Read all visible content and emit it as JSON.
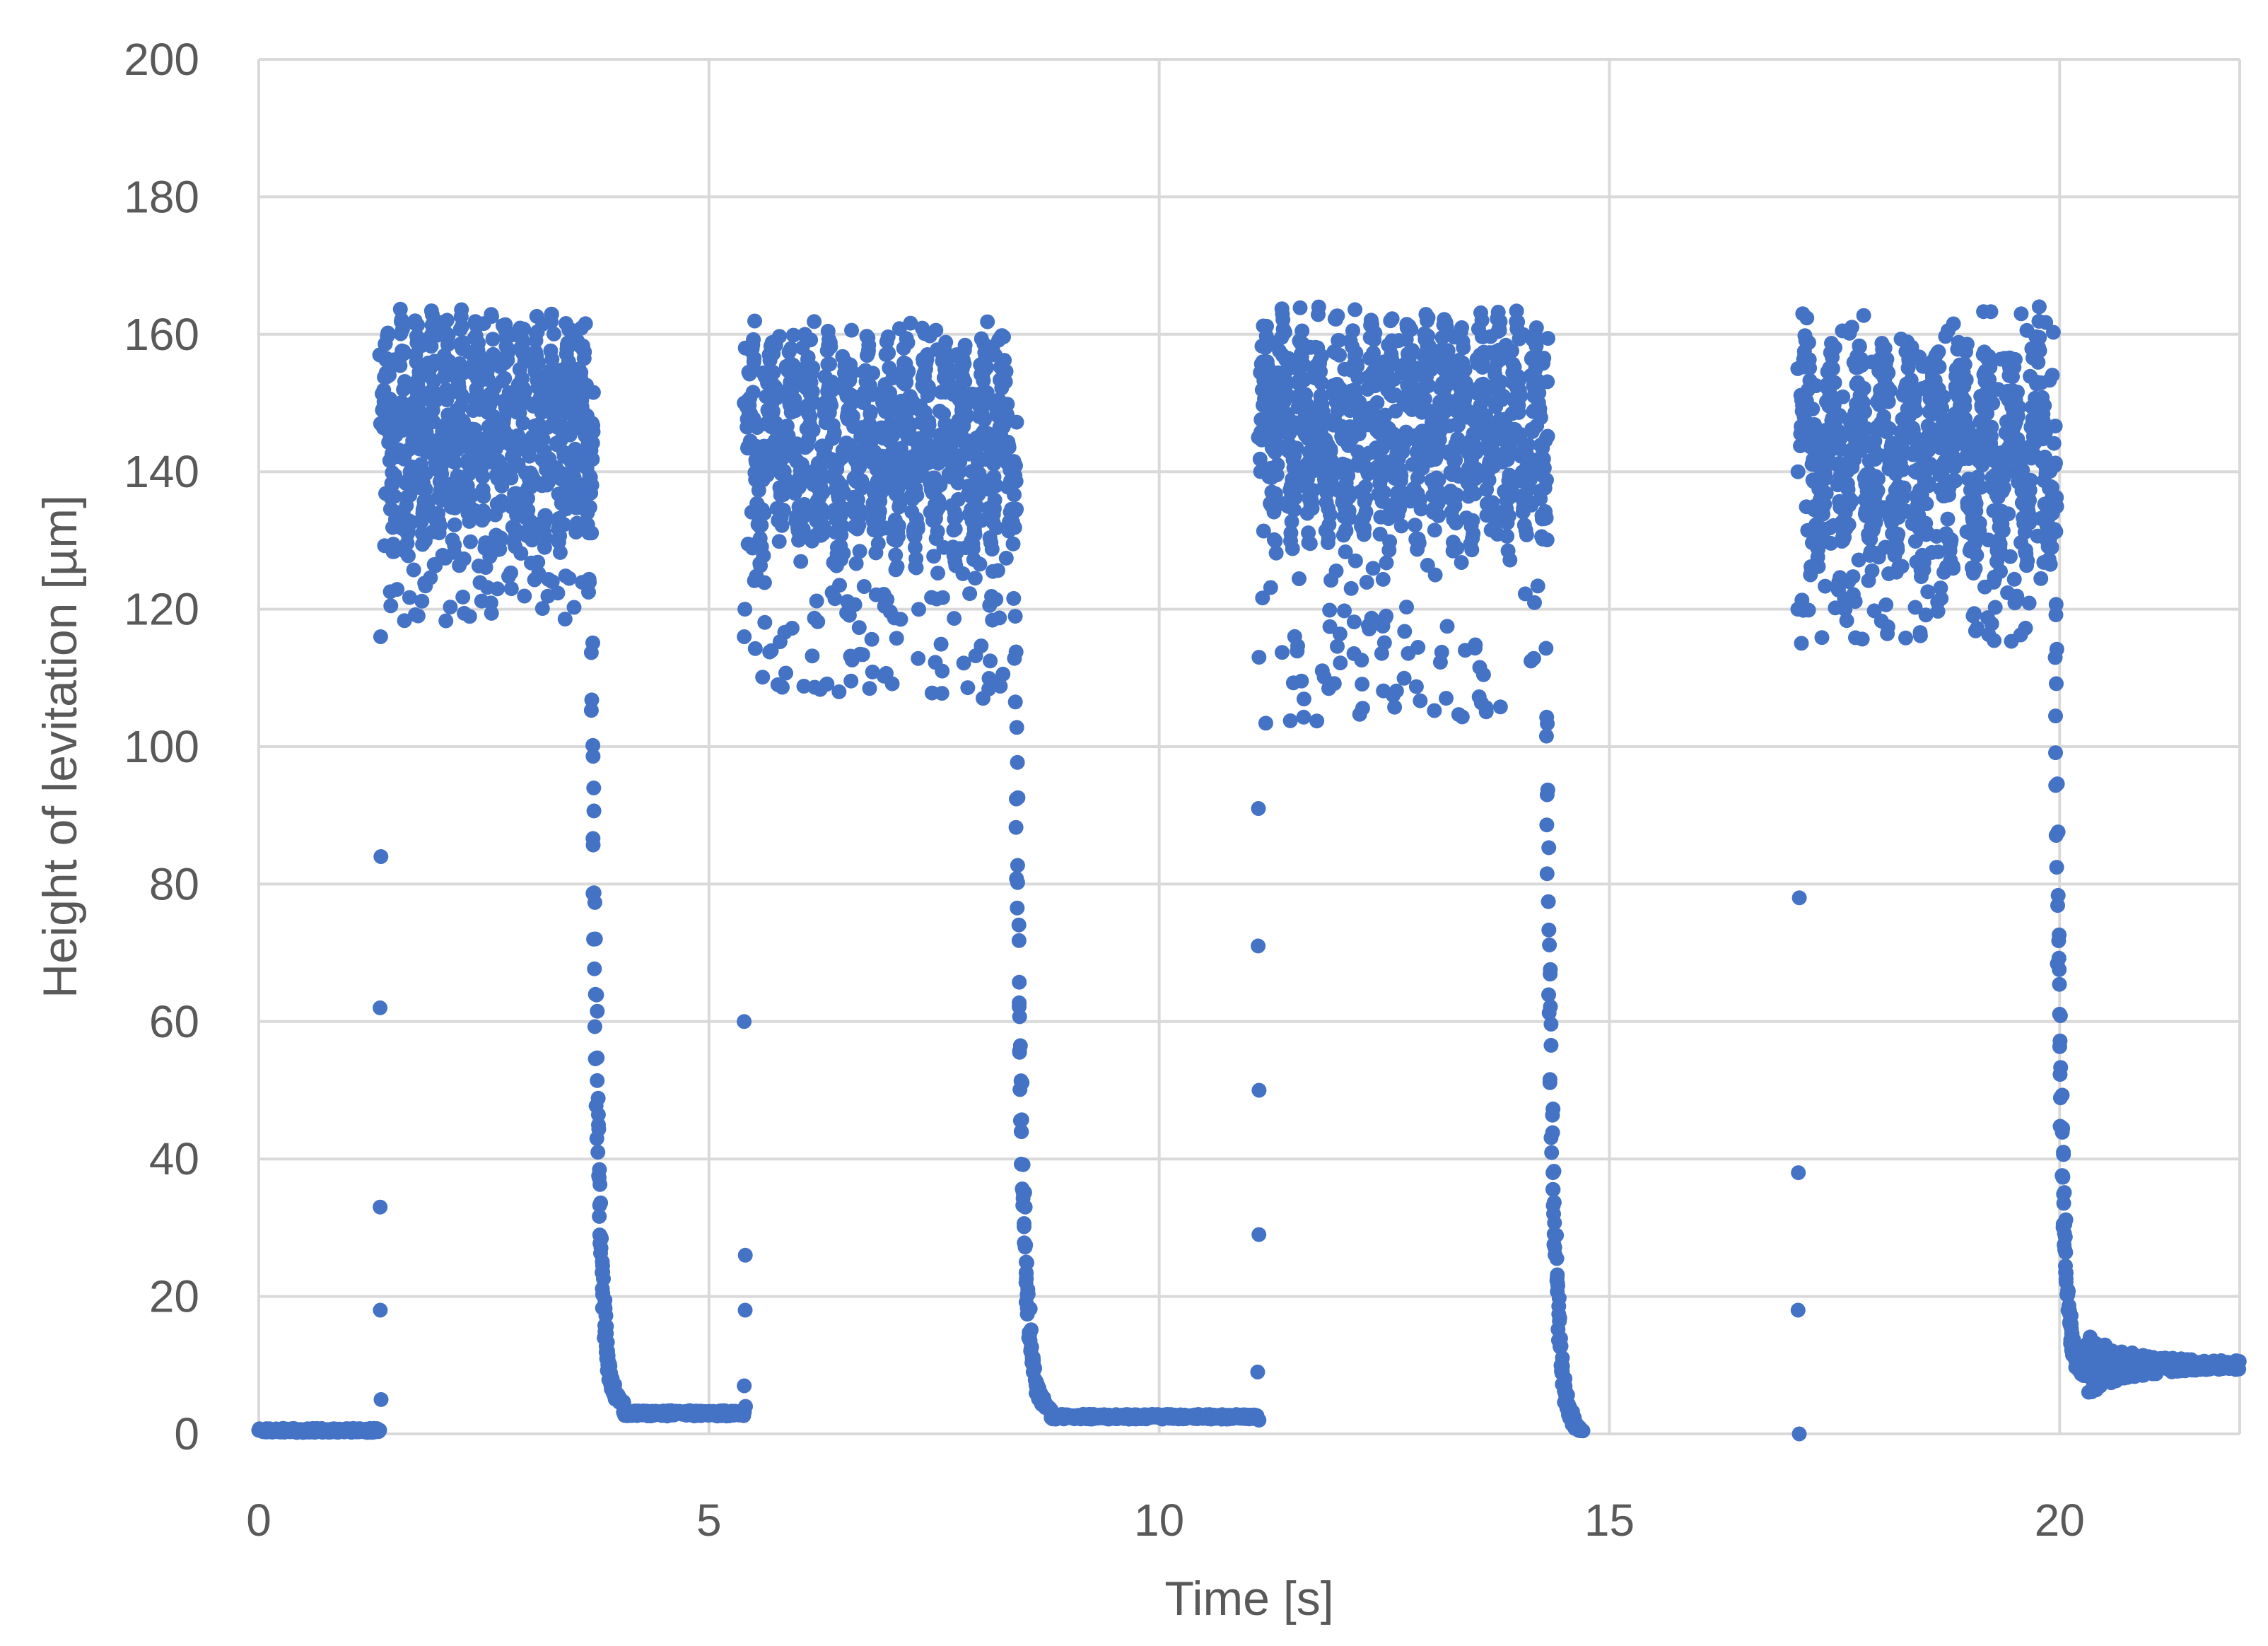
{
  "chart_data": {
    "type": "scatter",
    "title": "",
    "xlabel": "Time [s]",
    "ylabel": "Height of levitation [µm]",
    "xlim": [
      0,
      22
    ],
    "ylim": [
      0,
      200
    ],
    "xticks": [
      0,
      5,
      10,
      15,
      20
    ],
    "yticks": [
      0,
      20,
      40,
      60,
      80,
      100,
      120,
      140,
      160,
      180,
      200
    ],
    "grid": true,
    "legend": "none",
    "color": "#4472c4",
    "series": [
      {
        "name": "Height of levitation",
        "segments": [
          {
            "phase": "rest",
            "t_start": 0.0,
            "t_end": 1.35,
            "height": 0.5,
            "spread": 0.6
          },
          {
            "phase": "rise",
            "t": 1.35,
            "values": [
              5,
              18,
              33,
              62,
              84,
              116,
              147,
              157
            ]
          },
          {
            "phase": "levitation",
            "t_start": 1.35,
            "t_end": 3.7,
            "center": 146,
            "low": 118,
            "high": 162,
            "oscillations": 14
          },
          {
            "phase": "fall",
            "t_start": 3.7,
            "t_end": 4.05,
            "from": 118,
            "to": 4
          },
          {
            "phase": "rest",
            "t_start": 4.05,
            "t_end": 5.4,
            "height": 3,
            "spread": 0.8
          },
          {
            "phase": "rise",
            "t": 5.4,
            "values": [
              4,
              7,
              18,
              26,
              60,
              116,
              120,
              150,
              158
            ]
          },
          {
            "phase": "levitation",
            "t_start": 5.4,
            "t_end": 8.4,
            "center": 143,
            "low": 107,
            "high": 162,
            "oscillations": 14
          },
          {
            "phase": "fall",
            "t_start": 8.4,
            "t_end": 8.8,
            "from": 115,
            "to": 3
          },
          {
            "phase": "rest",
            "t_start": 8.8,
            "t_end": 11.1,
            "height": 2.5,
            "spread": 0.7
          },
          {
            "phase": "rise",
            "t": 11.1,
            "values": [
              2,
              9,
              29,
              50,
              71,
              91,
              113,
              145
            ]
          },
          {
            "phase": "levitation",
            "t_start": 11.1,
            "t_end": 14.3,
            "center": 146,
            "low": 103,
            "high": 160,
            "oscillations": 16
          },
          {
            "phase": "fall",
            "t_start": 14.3,
            "t_end": 14.7,
            "from": 107,
            "to": 0
          },
          {
            "phase": "rise",
            "t": 17.1,
            "values": [
              0,
              18,
              38,
              78,
              120,
              140,
              155
            ]
          },
          {
            "phase": "levitation",
            "t_start": 17.1,
            "t_end": 19.95,
            "center": 143,
            "low": 115,
            "high": 164,
            "oscillations": 10
          },
          {
            "phase": "fall",
            "t_start": 19.95,
            "t_end": 20.3,
            "from": 120,
            "to": 8
          },
          {
            "phase": "settle",
            "t_start": 20.3,
            "t_end": 22.0,
            "height": 10,
            "spread": 4
          }
        ]
      }
    ]
  }
}
